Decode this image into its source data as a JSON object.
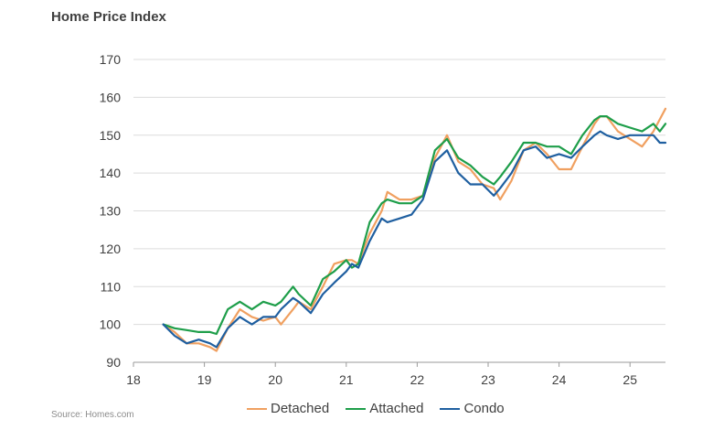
{
  "title": "Home Price Index",
  "source": "Source: Homes.com",
  "chart_data": {
    "type": "line",
    "title": "Home Price Index",
    "xlabel": "",
    "ylabel": "",
    "xlim": [
      18,
      25.5
    ],
    "ylim": [
      90,
      170
    ],
    "xticks": [
      18,
      19,
      20,
      21,
      22,
      23,
      24,
      25
    ],
    "yticks": [
      90,
      100,
      110,
      120,
      130,
      140,
      150,
      160,
      170
    ],
    "grid": "horizontal",
    "legend": "bottom",
    "series": [
      {
        "name": "Detached",
        "color": "#f0a060",
        "points": [
          [
            18.42,
            100
          ],
          [
            18.58,
            98
          ],
          [
            18.75,
            95
          ],
          [
            18.92,
            95
          ],
          [
            19.08,
            94
          ],
          [
            19.17,
            93
          ],
          [
            19.33,
            99
          ],
          [
            19.5,
            104
          ],
          [
            19.67,
            102
          ],
          [
            19.83,
            101
          ],
          [
            20.0,
            102
          ],
          [
            20.08,
            100
          ],
          [
            20.25,
            104
          ],
          [
            20.33,
            106
          ],
          [
            20.5,
            104
          ],
          [
            20.67,
            110
          ],
          [
            20.83,
            116
          ],
          [
            21.0,
            117
          ],
          [
            21.08,
            117
          ],
          [
            21.17,
            116
          ],
          [
            21.33,
            124
          ],
          [
            21.5,
            130
          ],
          [
            21.58,
            135
          ],
          [
            21.75,
            133
          ],
          [
            21.92,
            133
          ],
          [
            22.08,
            134
          ],
          [
            22.25,
            144
          ],
          [
            22.42,
            150
          ],
          [
            22.58,
            143
          ],
          [
            22.75,
            141
          ],
          [
            22.92,
            137
          ],
          [
            23.08,
            136
          ],
          [
            23.17,
            133
          ],
          [
            23.33,
            138
          ],
          [
            23.5,
            146
          ],
          [
            23.67,
            148
          ],
          [
            23.83,
            145
          ],
          [
            24.0,
            141
          ],
          [
            24.17,
            141
          ],
          [
            24.33,
            147
          ],
          [
            24.5,
            153
          ],
          [
            24.58,
            155
          ],
          [
            24.67,
            155
          ],
          [
            24.83,
            151
          ],
          [
            25.0,
            149
          ],
          [
            25.17,
            147
          ],
          [
            25.33,
            151
          ],
          [
            25.5,
            157
          ]
        ]
      },
      {
        "name": "Attached",
        "color": "#1e9e4a",
        "points": [
          [
            18.42,
            100
          ],
          [
            18.58,
            99
          ],
          [
            18.75,
            98.5
          ],
          [
            18.92,
            98
          ],
          [
            19.08,
            98
          ],
          [
            19.17,
            97.5
          ],
          [
            19.33,
            104
          ],
          [
            19.5,
            106
          ],
          [
            19.67,
            104
          ],
          [
            19.83,
            106
          ],
          [
            20.0,
            105
          ],
          [
            20.08,
            106
          ],
          [
            20.25,
            110
          ],
          [
            20.33,
            108
          ],
          [
            20.5,
            105
          ],
          [
            20.67,
            112
          ],
          [
            20.83,
            114
          ],
          [
            21.0,
            117
          ],
          [
            21.08,
            115
          ],
          [
            21.17,
            116
          ],
          [
            21.33,
            127
          ],
          [
            21.5,
            132
          ],
          [
            21.58,
            133
          ],
          [
            21.75,
            132
          ],
          [
            21.92,
            132
          ],
          [
            22.08,
            134
          ],
          [
            22.25,
            146
          ],
          [
            22.42,
            149
          ],
          [
            22.58,
            144
          ],
          [
            22.75,
            142
          ],
          [
            22.92,
            139
          ],
          [
            23.08,
            137
          ],
          [
            23.17,
            139
          ],
          [
            23.33,
            143
          ],
          [
            23.5,
            148
          ],
          [
            23.67,
            148
          ],
          [
            23.83,
            147
          ],
          [
            24.0,
            147
          ],
          [
            24.17,
            145
          ],
          [
            24.33,
            150
          ],
          [
            24.5,
            154
          ],
          [
            24.58,
            155
          ],
          [
            24.67,
            155
          ],
          [
            24.83,
            153
          ],
          [
            25.0,
            152
          ],
          [
            25.17,
            151
          ],
          [
            25.33,
            153
          ],
          [
            25.42,
            151
          ],
          [
            25.5,
            153
          ]
        ]
      },
      {
        "name": "Condo",
        "color": "#1f5fa0",
        "points": [
          [
            18.42,
            100
          ],
          [
            18.58,
            97
          ],
          [
            18.75,
            95
          ],
          [
            18.92,
            96
          ],
          [
            19.08,
            95
          ],
          [
            19.17,
            94
          ],
          [
            19.33,
            99
          ],
          [
            19.5,
            102
          ],
          [
            19.67,
            100
          ],
          [
            19.83,
            102
          ],
          [
            20.0,
            102
          ],
          [
            20.08,
            104
          ],
          [
            20.25,
            107
          ],
          [
            20.33,
            106
          ],
          [
            20.5,
            103
          ],
          [
            20.67,
            108
          ],
          [
            20.83,
            111
          ],
          [
            21.0,
            114
          ],
          [
            21.08,
            116
          ],
          [
            21.17,
            115
          ],
          [
            21.33,
            122
          ],
          [
            21.5,
            128
          ],
          [
            21.58,
            127
          ],
          [
            21.75,
            128
          ],
          [
            21.92,
            129
          ],
          [
            22.08,
            133
          ],
          [
            22.25,
            143
          ],
          [
            22.42,
            146
          ],
          [
            22.58,
            140
          ],
          [
            22.75,
            137
          ],
          [
            22.92,
            137
          ],
          [
            23.08,
            134
          ],
          [
            23.17,
            136
          ],
          [
            23.33,
            140
          ],
          [
            23.5,
            146
          ],
          [
            23.67,
            147
          ],
          [
            23.83,
            144
          ],
          [
            24.0,
            145
          ],
          [
            24.17,
            144
          ],
          [
            24.33,
            147
          ],
          [
            24.5,
            150
          ],
          [
            24.58,
            151
          ],
          [
            24.67,
            150
          ],
          [
            24.83,
            149
          ],
          [
            25.0,
            150
          ],
          [
            25.17,
            150
          ],
          [
            25.33,
            150
          ],
          [
            25.42,
            148
          ],
          [
            25.5,
            148
          ]
        ]
      }
    ]
  }
}
